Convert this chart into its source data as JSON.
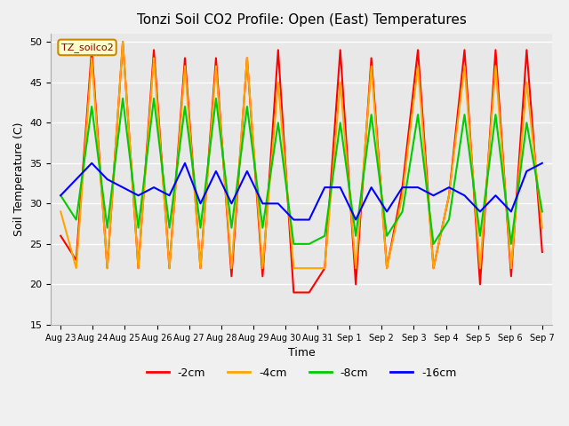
{
  "title": "Tonzi Soil CO2 Profile: Open (East) Temperatures",
  "xlabel": "Time",
  "ylabel": "Soil Temperature (C)",
  "ylim": [
    15,
    51
  ],
  "yticks": [
    15,
    20,
    25,
    30,
    35,
    40,
    45,
    50
  ],
  "legend_label": "TZ_soilco2",
  "series_labels": [
    "-2cm",
    "-4cm",
    "-8cm",
    "-16cm"
  ],
  "series_colors": [
    "#ff0000",
    "#ffa500",
    "#00cc00",
    "#0000ff"
  ],
  "background_color": "#e8e8e8",
  "plot_bg_color": "#e8e8e8",
  "x_labels": [
    "Aug 23",
    "Aug 24",
    "Aug 25",
    "Aug 26",
    "Aug 27",
    "Aug 28",
    "Aug 29",
    "Aug 30",
    "Aug 31",
    "Sep 1",
    "Sep 2",
    "Sep 3",
    "Sep 4",
    "Sep 5",
    "Sep 6",
    "Sep 7"
  ],
  "n_days": 16,
  "data_2cm": [
    26,
    23,
    49,
    22,
    50,
    22,
    49,
    22,
    48,
    22,
    48,
    21,
    48,
    21,
    49,
    19,
    19,
    22,
    49,
    20,
    48,
    22,
    32,
    49,
    22,
    31,
    49,
    20,
    49,
    21,
    49,
    24
  ],
  "data_4cm": [
    29,
    22,
    48,
    22,
    50,
    22,
    48,
    22,
    47,
    22,
    47,
    22,
    48,
    22,
    45,
    22,
    22,
    22,
    45,
    22,
    47,
    22,
    31,
    47,
    22,
    31,
    47,
    22,
    47,
    22,
    45,
    27
  ],
  "data_8cm": [
    31,
    28,
    42,
    27,
    43,
    27,
    43,
    27,
    42,
    27,
    43,
    27,
    42,
    27,
    40,
    25,
    25,
    26,
    40,
    26,
    41,
    26,
    29,
    41,
    25,
    28,
    41,
    26,
    41,
    25,
    40,
    29
  ],
  "data_16cm": [
    31,
    33,
    35,
    33,
    32,
    31,
    32,
    31,
    35,
    30,
    34,
    30,
    34,
    30,
    30,
    28,
    28,
    32,
    32,
    28,
    32,
    29,
    32,
    32,
    31,
    32,
    31,
    29,
    31,
    29,
    34,
    35
  ]
}
